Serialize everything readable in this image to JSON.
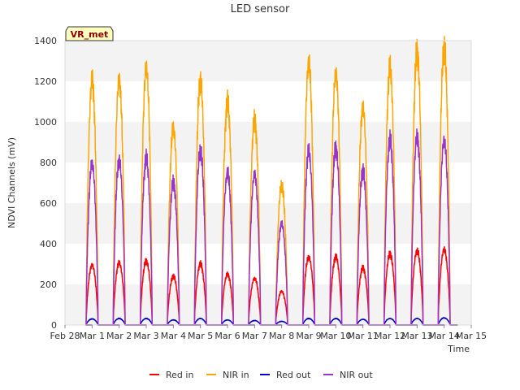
{
  "chart_data": {
    "type": "line",
    "title": "LED sensor",
    "xlabel": "Time",
    "ylabel": "NDVI Channels (mV)",
    "ylim": [
      0,
      1400
    ],
    "yticks": [
      0,
      200,
      400,
      600,
      800,
      1000,
      1200,
      1400
    ],
    "xlim": [
      "Feb 28",
      "Mar 15"
    ],
    "xticks": [
      "Feb 28",
      "Mar 1",
      "Mar 2",
      "Mar 3",
      "Mar 4",
      "Mar 5",
      "Mar 6",
      "Mar 7",
      "Mar 8",
      "Mar 9",
      "Mar 10",
      "Mar 11",
      "Mar 12",
      "Mar 13",
      "Mar 14",
      "Mar 15"
    ],
    "grid": "horizontal bands",
    "legend_position": "bottom",
    "badge": "VR_met",
    "days": [
      "Mar 1",
      "Mar 2",
      "Mar 3",
      "Mar 4",
      "Mar 5",
      "Mar 6",
      "Mar 7",
      "Mar 8",
      "Mar 9",
      "Mar 10",
      "Mar 11",
      "Mar 12",
      "Mar 13",
      "Mar 14"
    ],
    "series": [
      {
        "name": "Red in",
        "color": "#ff0000",
        "daily_peak": [
          295,
          305,
          315,
          240,
          300,
          250,
          230,
          165,
          335,
          335,
          280,
          350,
          365,
          370
        ]
      },
      {
        "name": "NIR in",
        "color": "#ffa500",
        "daily_peak": [
          1200,
          1205,
          1265,
          970,
          1205,
          1095,
          1005,
          690,
          1290,
          1235,
          1070,
          1265,
          1345,
          1365
        ]
      },
      {
        "name": "Red out",
        "color": "#0000cc",
        "daily_peak": [
          30,
          32,
          32,
          25,
          32,
          25,
          22,
          18,
          32,
          32,
          28,
          32,
          32,
          35
        ]
      },
      {
        "name": "NIR out",
        "color": "#9a32cd",
        "daily_peak": [
          795,
          810,
          820,
          700,
          860,
          750,
          740,
          500,
          855,
          870,
          760,
          910,
          925,
          910
        ]
      }
    ]
  }
}
